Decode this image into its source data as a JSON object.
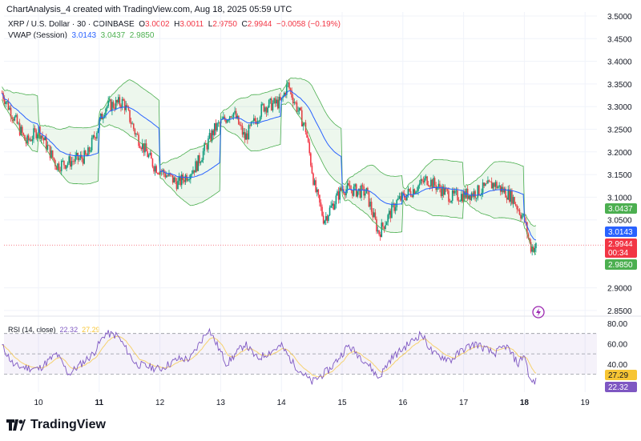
{
  "header": {
    "caption": "ChartAnalysis_4 created with TradingView.com, Aug 18, 2025 05:59 UTC"
  },
  "symbol": {
    "title": "XRP / U.S. Dollar · 30 · COINBASE",
    "o_label": "O",
    "o": "3.0002",
    "h_label": "H",
    "h": "3.0011",
    "l_label": "L",
    "l": "2.9750",
    "c_label": "C",
    "c": "2.9944",
    "change": "−0.0058 (−0.19%)"
  },
  "vwap": {
    "title": "VWAP (Session)",
    "vwap": "3.0143",
    "upper": "3.0437",
    "lower": "2.9850"
  },
  "rsi": {
    "title": "RSI (14, close)",
    "value": "22.32",
    "ma": "27.29"
  },
  "price_axis": {
    "ticks": [
      "3.5000",
      "3.4500",
      "3.4000",
      "3.3500",
      "3.3000",
      "3.2500",
      "3.2000",
      "3.1500",
      "3.1000",
      "3.0500",
      "2.9000",
      "2.8500"
    ],
    "tags": {
      "upper": "3.0437",
      "vwap": "3.0143",
      "last": "2.9944",
      "countdown": "00:34",
      "lower": "2.9850"
    }
  },
  "rsi_axis": {
    "ticks": [
      "80.00",
      "60.00",
      "40.00"
    ],
    "tags": {
      "ma": "27.29",
      "rsi": "22.32"
    }
  },
  "time_axis": {
    "ticks": [
      "10",
      "11",
      "12",
      "13",
      "14",
      "15",
      "16",
      "17",
      "18",
      "19"
    ]
  },
  "brand": "TradingView",
  "colors": {
    "up": "#089981",
    "down": "#f23645",
    "vwap": "#2962ff",
    "band": "#4caf50",
    "rsi": "#7e57c2",
    "rsi_ma": "#f7c534"
  },
  "chart_data": {
    "type": "candlestick",
    "price_path": [
      [
        9.4,
        3.33
      ],
      [
        9.8,
        3.22
      ],
      [
        10.0,
        3.25
      ],
      [
        10.3,
        3.17
      ],
      [
        10.8,
        3.19
      ],
      [
        11.1,
        3.3
      ],
      [
        11.4,
        3.31
      ],
      [
        11.6,
        3.24
      ],
      [
        11.9,
        3.17
      ],
      [
        12.3,
        3.13
      ],
      [
        12.6,
        3.17
      ],
      [
        12.9,
        3.25
      ],
      [
        13.2,
        3.29
      ],
      [
        13.4,
        3.23
      ],
      [
        13.7,
        3.3
      ],
      [
        14.0,
        3.31
      ],
      [
        14.1,
        3.35
      ],
      [
        14.4,
        3.25
      ],
      [
        14.55,
        3.12
      ],
      [
        14.7,
        3.05
      ],
      [
        15.0,
        3.12
      ],
      [
        15.4,
        3.11
      ],
      [
        15.6,
        3.02
      ],
      [
        15.9,
        3.09
      ],
      [
        16.2,
        3.12
      ],
      [
        16.4,
        3.14
      ],
      [
        16.8,
        3.1
      ],
      [
        17.2,
        3.11
      ],
      [
        17.5,
        3.13
      ],
      [
        17.8,
        3.1
      ],
      [
        18.0,
        3.05
      ],
      [
        18.1,
        2.99
      ],
      [
        18.2,
        2.99
      ]
    ],
    "rsi_path": [
      [
        9.4,
        58
      ],
      [
        9.6,
        38
      ],
      [
        10.0,
        35
      ],
      [
        10.3,
        50
      ],
      [
        10.5,
        30
      ],
      [
        10.9,
        50
      ],
      [
        11.1,
        70
      ],
      [
        11.3,
        68
      ],
      [
        11.6,
        40
      ],
      [
        12.0,
        35
      ],
      [
        12.3,
        45
      ],
      [
        12.5,
        45
      ],
      [
        12.8,
        75
      ],
      [
        13.1,
        40
      ],
      [
        13.4,
        60
      ],
      [
        13.6,
        45
      ],
      [
        14.0,
        58
      ],
      [
        14.2,
        40
      ],
      [
        14.5,
        22
      ],
      [
        14.8,
        35
      ],
      [
        15.1,
        58
      ],
      [
        15.4,
        42
      ],
      [
        15.6,
        26
      ],
      [
        15.8,
        45
      ],
      [
        16.3,
        70
      ],
      [
        16.5,
        50
      ],
      [
        16.8,
        44
      ],
      [
        17.0,
        55
      ],
      [
        17.2,
        60
      ],
      [
        17.5,
        50
      ],
      [
        17.7,
        58
      ],
      [
        17.9,
        40
      ],
      [
        18.0,
        50
      ],
      [
        18.1,
        22
      ],
      [
        18.2,
        23
      ]
    ],
    "price_range": [
      2.83,
      3.52
    ],
    "rsi_range": [
      15,
      80
    ],
    "rsi_bands": [
      70,
      50,
      30
    ],
    "last_price": 2.9944,
    "x_range": [
      9.4,
      19.2
    ]
  }
}
